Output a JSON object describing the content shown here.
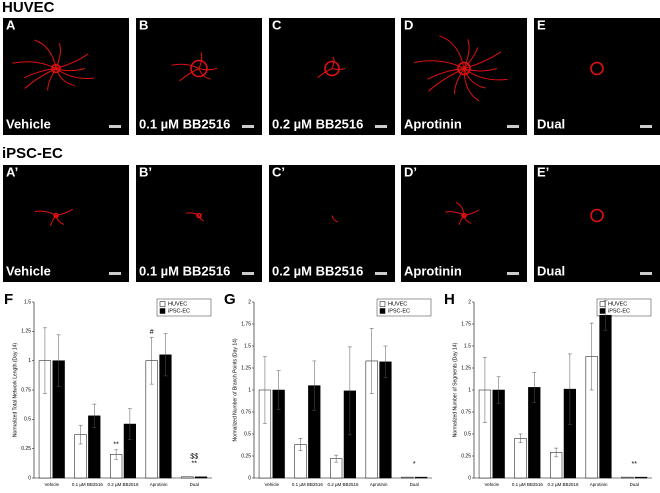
{
  "panels": {
    "headings": [
      "HUVEC",
      "iPSC-EC"
    ],
    "rows": [
      {
        "letters": [
          "A",
          "B",
          "C",
          "D",
          "E"
        ],
        "labels": [
          "Vehicle",
          "0.1 µM BB2516",
          "0.2 µM BB2516",
          "Aprotinin",
          "Dual"
        ]
      },
      {
        "letters": [
          "A’",
          "B’",
          "C’",
          "D’",
          "E’"
        ],
        "labels": [
          "Vehicle",
          "0.1 µM BB2516",
          "0.2 µM BB2516",
          "Aprotinin",
          "Dual"
        ]
      }
    ]
  },
  "chart_data": [
    {
      "type": "bar",
      "panel": "F",
      "y_label": "Normalized Total Network Length (Day 14)",
      "categories": [
        "Vehicle",
        "0.1 µM BB2516",
        "0.2 µM BB2516",
        "Aprotinin",
        "Dual"
      ],
      "series": [
        {
          "name": "HUVEC",
          "color": "#ffffff",
          "values": [
            1.0,
            0.37,
            0.2,
            1.0,
            0.01
          ],
          "errors": [
            0.28,
            0.08,
            0.04,
            0.2,
            0.0
          ],
          "annotations": [
            null,
            null,
            "**",
            "#",
            "**"
          ]
        },
        {
          "name": "iPSC-EC",
          "color": "#000000",
          "values": [
            1.0,
            0.53,
            0.46,
            1.05,
            0.01
          ],
          "errors": [
            0.22,
            0.1,
            0.13,
            0.18,
            0.0
          ],
          "annotations": [
            null,
            null,
            null,
            null,
            "$$"
          ]
        }
      ],
      "ylim": [
        0,
        1.5
      ],
      "yticks": [
        0,
        0.25,
        0.5,
        0.75,
        1,
        1.25,
        1.5
      ],
      "legend": "top-right"
    },
    {
      "type": "bar",
      "panel": "G",
      "y_label": "Normalized Number of Branch Points (Day 14)",
      "categories": [
        "Vehicle",
        "0.1 µM BB2516",
        "0.2 µM BB2516",
        "Aprotinin",
        "Dual"
      ],
      "series": [
        {
          "name": "HUVEC",
          "color": "#ffffff",
          "values": [
            1.0,
            0.38,
            0.22,
            1.33,
            0.01
          ],
          "errors": [
            0.38,
            0.07,
            0.04,
            0.37,
            0.0
          ],
          "annotations": [
            null,
            null,
            null,
            null,
            "*"
          ]
        },
        {
          "name": "iPSC-EC",
          "color": "#000000",
          "values": [
            1.0,
            1.05,
            0.99,
            1.32,
            0.01
          ],
          "errors": [
            0.22,
            0.28,
            0.5,
            0.18,
            0.0
          ],
          "annotations": [
            null,
            null,
            null,
            null,
            null
          ]
        }
      ],
      "ylim": [
        0,
        2
      ],
      "yticks": [
        0,
        0.25,
        0.5,
        0.75,
        1,
        1.25,
        1.5,
        1.75,
        2
      ],
      "legend": "top-right"
    },
    {
      "type": "bar",
      "panel": "H",
      "y_label": "Normalized Number of Segments (Day 14)",
      "categories": [
        "Vehicle",
        "0.1 µM BB2516",
        "0.2 µM BB2516",
        "Aprotinin",
        "Dual"
      ],
      "series": [
        {
          "name": "HUVEC",
          "color": "#ffffff",
          "values": [
            1.0,
            0.45,
            0.29,
            1.38,
            0.01
          ],
          "errors": [
            0.37,
            0.05,
            0.05,
            0.38,
            0.0
          ],
          "annotations": [
            null,
            null,
            null,
            null,
            "**"
          ]
        },
        {
          "name": "iPSC-EC",
          "color": "#000000",
          "values": [
            1.0,
            1.03,
            1.01,
            1.85,
            0.01
          ],
          "errors": [
            0.15,
            0.17,
            0.4,
            0.17,
            0.0
          ],
          "annotations": [
            null,
            null,
            null,
            null,
            null
          ]
        }
      ],
      "ylim": [
        0,
        2
      ],
      "yticks": [
        0,
        0.25,
        0.5,
        0.75,
        1,
        1.25,
        1.5,
        1.75,
        2
      ],
      "legend": "top-right"
    }
  ]
}
